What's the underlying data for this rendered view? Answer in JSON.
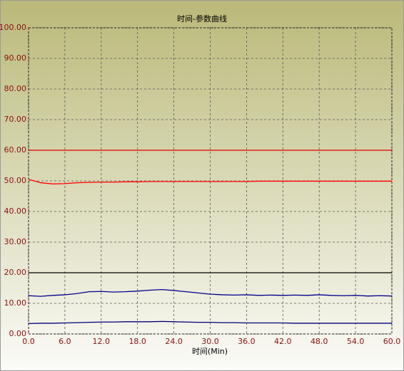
{
  "chart_data": {
    "type": "line",
    "title": "时间-参数曲线",
    "x_label": "时间(Min)",
    "x": [
      0,
      2,
      4,
      6,
      8,
      10,
      12,
      14,
      16,
      18,
      20,
      22,
      24,
      26,
      28,
      30,
      32,
      34,
      36,
      38,
      40,
      42,
      44,
      46,
      48,
      50,
      52,
      54,
      56,
      58,
      60
    ],
    "series": [
      {
        "color": "#e00000",
        "values": [
          60,
          60,
          60,
          60,
          60,
          60,
          60,
          60,
          60,
          60,
          60,
          60,
          60,
          60,
          60,
          60,
          60,
          60,
          60,
          60,
          60,
          60,
          60,
          60,
          60,
          60,
          60,
          60,
          60,
          60,
          60
        ]
      },
      {
        "color": "#ff0000",
        "values": [
          50.5,
          49.4,
          49.0,
          49.1,
          49.4,
          49.5,
          49.6,
          49.6,
          49.7,
          49.7,
          49.8,
          49.8,
          49.8,
          49.8,
          49.8,
          49.8,
          49.8,
          49.8,
          49.8,
          49.9,
          49.9,
          49.9,
          49.9,
          49.9,
          49.9,
          49.9,
          49.9,
          49.9,
          49.9,
          49.9,
          49.9
        ]
      },
      {
        "color": "#000000",
        "values": [
          20,
          20,
          20,
          20,
          20,
          20,
          20,
          20,
          20,
          20,
          20,
          20,
          20,
          20,
          20,
          20,
          20,
          20,
          20,
          20,
          20,
          20,
          20,
          20,
          20,
          20,
          20,
          20,
          20,
          20,
          20
        ]
      },
      {
        "color": "#00008b",
        "values": [
          12.5,
          12.3,
          12.6,
          12.8,
          13.2,
          13.8,
          13.9,
          13.7,
          13.8,
          14.0,
          14.3,
          14.5,
          14.2,
          13.8,
          13.4,
          13.0,
          12.8,
          12.7,
          12.8,
          12.6,
          12.7,
          12.6,
          12.7,
          12.6,
          12.8,
          12.6,
          12.5,
          12.6,
          12.4,
          12.5,
          12.4
        ]
      },
      {
        "color": "#000080",
        "values": [
          3.4,
          3.5,
          3.5,
          3.6,
          3.7,
          3.8,
          3.9,
          3.9,
          4.0,
          4.0,
          4.0,
          4.1,
          4.0,
          3.9,
          3.8,
          3.8,
          3.7,
          3.7,
          3.6,
          3.6,
          3.6,
          3.6,
          3.5,
          3.5,
          3.5,
          3.5,
          3.5,
          3.5,
          3.5,
          3.5,
          3.5
        ]
      }
    ],
    "xlim": [
      0,
      60
    ],
    "xticks": [
      {
        "value": 0,
        "label": "0.0"
      },
      {
        "value": 6,
        "label": "6.0"
      },
      {
        "value": 12,
        "label": "12.0"
      },
      {
        "value": 18,
        "label": "18.0"
      },
      {
        "value": 24,
        "label": "24.0"
      },
      {
        "value": 30,
        "label": "30.0"
      },
      {
        "value": 36,
        "label": "36.0"
      },
      {
        "value": 42,
        "label": "42.0"
      },
      {
        "value": 48,
        "label": "48.0"
      },
      {
        "value": 54,
        "label": "54.0"
      },
      {
        "value": 60,
        "label": "60.0"
      }
    ],
    "ylim": [
      0,
      100
    ],
    "yticks": [
      {
        "value": 0,
        "label": "0.00"
      },
      {
        "value": 10,
        "label": "10.00"
      },
      {
        "value": 20,
        "label": "20.00"
      },
      {
        "value": 30,
        "label": "30.00"
      },
      {
        "value": 40,
        "label": "40.00"
      },
      {
        "value": 50,
        "label": "50.00"
      },
      {
        "value": 60,
        "label": "60.00"
      },
      {
        "value": 70,
        "label": "70.00"
      },
      {
        "value": 80,
        "label": "80.00"
      },
      {
        "value": 90,
        "label": "90.00"
      },
      {
        "value": 100,
        "label": "100.00"
      }
    ],
    "grid": true
  }
}
